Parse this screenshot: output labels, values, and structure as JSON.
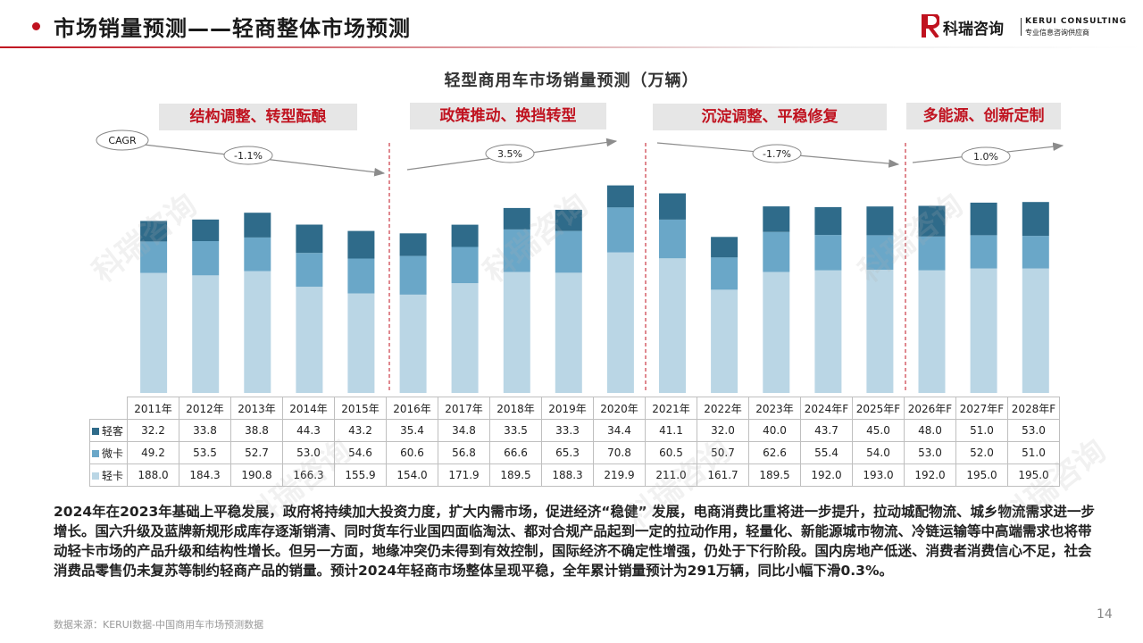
{
  "header": {
    "title": "市场销量预测——轻商整体市场预测",
    "logo_cn": "科瑞咨询",
    "logo_en": "KERUI CONSULTING",
    "logo_sub": "专业信息咨询供应商"
  },
  "phases": [
    "结构调整、转型酝酿",
    "政策推动、换挡转型",
    "沉淀调整、平稳修复",
    "多能源、创新定制"
  ],
  "cagr": {
    "label": "CAGR",
    "values": [
      "-1.1%",
      "3.5%",
      "-1.7%",
      "1.0%"
    ]
  },
  "colors": {
    "qingke": "#2f6b8a",
    "weika": "#6aa7c8",
    "qingka": "#bad6e5",
    "accent": "#c0121f"
  },
  "chart_data": {
    "type": "bar",
    "stacked": true,
    "title": "轻型商用车市场销量预测（万辆）",
    "categories": [
      "2011年",
      "2012年",
      "2013年",
      "2014年",
      "2015年",
      "2016年",
      "2017年",
      "2018年",
      "2019年",
      "2020年",
      "2021年",
      "2022年",
      "2023年",
      "2024年F",
      "2025年F",
      "2026年F",
      "2027年F",
      "2028年F"
    ],
    "series": [
      {
        "name": "轻客",
        "values": [
          32.2,
          33.8,
          38.8,
          44.3,
          43.2,
          35.4,
          34.8,
          33.5,
          33.3,
          34.4,
          41.1,
          32.0,
          40.0,
          43.7,
          45.0,
          48.0,
          51.0,
          53.0
        ]
      },
      {
        "name": "微卡",
        "values": [
          49.2,
          53.5,
          52.7,
          53.0,
          54.6,
          60.6,
          56.8,
          66.6,
          65.3,
          70.8,
          60.5,
          50.7,
          62.6,
          55.4,
          54.0,
          53.0,
          52.0,
          51.0
        ]
      },
      {
        "name": "轻卡",
        "values": [
          188.0,
          184.3,
          190.8,
          166.3,
          155.9,
          154.0,
          171.9,
          189.5,
          188.3,
          219.9,
          211.0,
          161.7,
          189.5,
          192.0,
          193.0,
          192.0,
          195.0,
          195.0
        ]
      }
    ],
    "table_rows": [
      {
        "name": "轻客",
        "values": [
          "32.2",
          "33.8",
          "38.8",
          "44.3",
          "43.2",
          "35.4",
          "34.8",
          "33.5",
          "33.3",
          "34.4",
          "41.1",
          "32.0",
          "40.0",
          "43.7",
          "45.0",
          "48.0",
          "51.0",
          "53.0"
        ]
      },
      {
        "name": "微卡",
        "values": [
          "49.2",
          "53.5",
          "52.7",
          "53.0",
          "54.6",
          "60.6",
          "56.8",
          "66.6",
          "65.3",
          "70.8",
          "60.5",
          "50.7",
          "62.6",
          "55.4",
          "54.0",
          "53.0",
          "52.0",
          "51.0"
        ]
      },
      {
        "name": "轻卡",
        "values": [
          "188.0",
          "184.3",
          "190.8",
          "166.3",
          "155.9",
          "154.0",
          "171.9",
          "189.5",
          "188.3",
          "219.9",
          "211.0",
          "161.7",
          "189.5",
          "192.0",
          "193.0",
          "192.0",
          "195.0",
          "195.0"
        ]
      }
    ]
  },
  "body_text": "2024年在2023年基础上平稳发展，政府将持续加大投资力度，扩大内需市场，促进经济“稳健” 发展，电商消费比重将进一步提升，拉动城配物流、城乡物流需求进一步增长。国六升级及蓝牌新规形成库存逐渐销清、同时货车行业国四面临淘汰、都对合规产品起到一定的拉动作用，轻量化、新能源城市物流、冷链运输等中高端需求也将带动轻卡市场的产品升级和结构性增长。但另一方面，地缘冲突仍未得到有效控制，国际经济不确定性增强，仍处于下行阶段。国内房地产低迷、消费者消费信心不足，社会消费品零售仍未复苏等制约轻商产品的销量。预计2024年轻商市场整体呈现平稳，全年累计销量预计为291万辆，同比小幅下滑0.3%。",
  "source": "数据来源：KERUI数据-中国商用车市场预测数据",
  "page_number": "14"
}
